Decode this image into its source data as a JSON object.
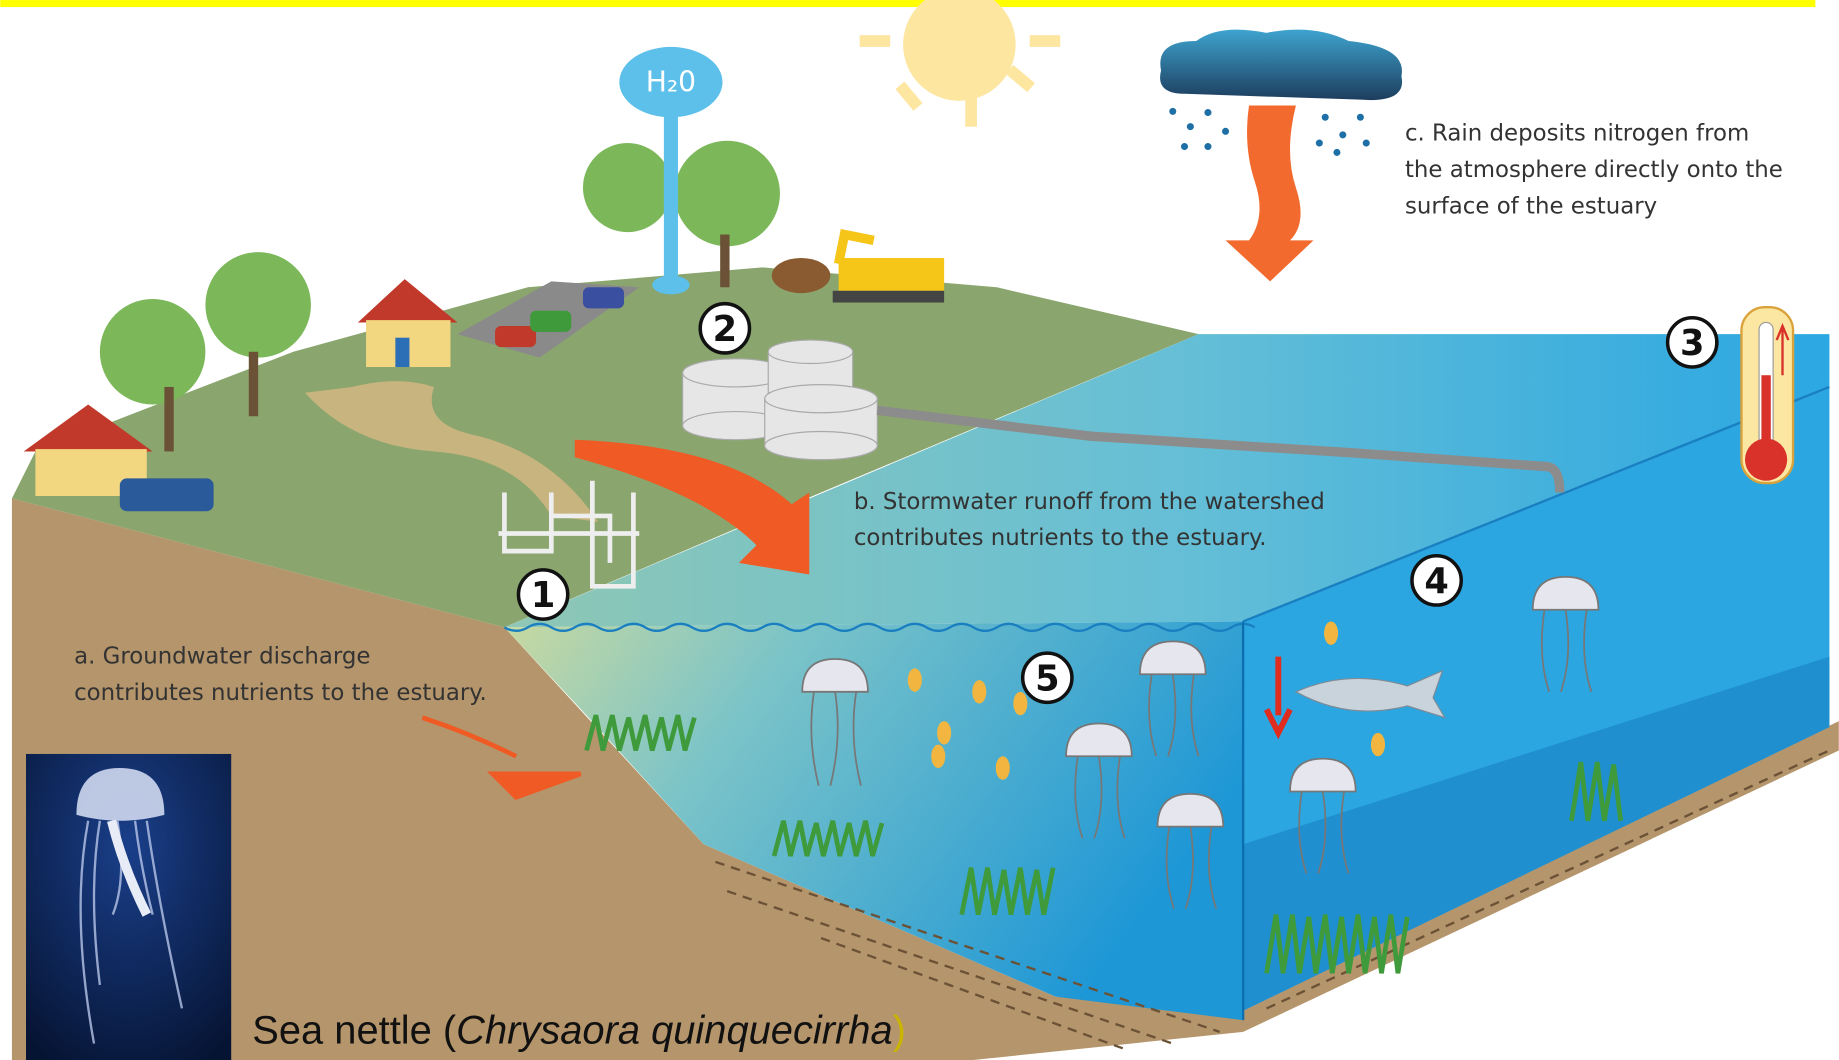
{
  "water_tower": "H₂0",
  "annotations": [
    {
      "lines": [
        "a. Groundwater discharge",
        "contributes nutrients to the estuary."
      ]
    },
    {
      "lines": [
        "b. Stormwater runoff from the  watershed",
        "contributes nutrients to the estuary."
      ]
    },
    {
      "lines": [
        "c. Rain deposits nitrogen from",
        "the atmosphere directly onto the",
        "surface of the estuary"
      ]
    }
  ],
  "markers": [
    1,
    2,
    3,
    4,
    5
  ],
  "caption": {
    "prefix": "Sea nettle (",
    "species": "Chrysaora quinquecirrha",
    "suffix": ")"
  }
}
